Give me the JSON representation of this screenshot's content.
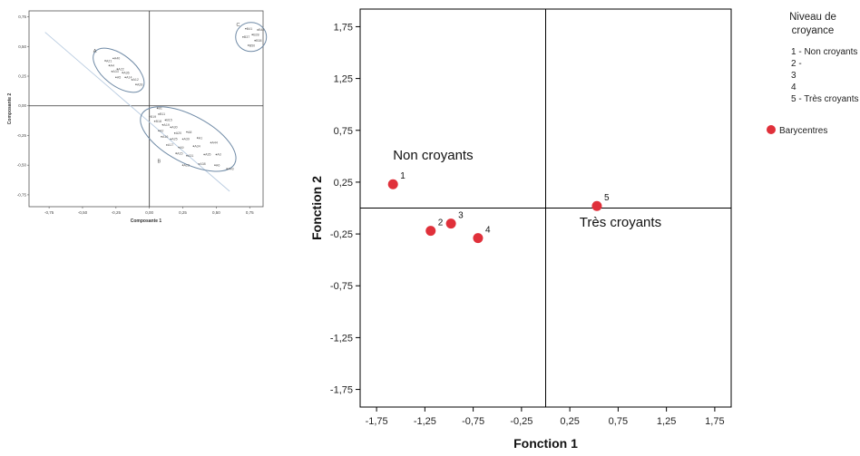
{
  "chart_data": [
    {
      "type": "scatter",
      "title": "",
      "xlabel": "Composante 1",
      "ylabel": "Composante 2",
      "xlim": [
        -0.9,
        0.85
      ],
      "ylim": [
        -0.85,
        0.8
      ],
      "x_ticks": [
        "-0,75",
        "-0,50",
        "-0,25",
        "0,00",
        "0,25",
        "0,50",
        "0,75"
      ],
      "y_ticks": [
        "0,75",
        "0,50",
        "0,25",
        "0,00",
        "-0,25",
        "-0,50",
        "-0,75"
      ],
      "group_labels": [
        {
          "label": "A",
          "x": -0.42,
          "y": 0.45
        },
        {
          "label": "B",
          "x": 0.06,
          "y": -0.48
        },
        {
          "label": "C",
          "x": 0.65,
          "y": 0.67
        }
      ],
      "series": [
        {
          "name": "A",
          "points": [
            {
              "label": "A21",
              "x": -0.33,
              "y": 0.38
            },
            {
              "label": "A40",
              "x": -0.27,
              "y": 0.4
            },
            {
              "label": "A4",
              "x": -0.3,
              "y": 0.34
            },
            {
              "label": "A22",
              "x": -0.24,
              "y": 0.31
            },
            {
              "label": "A33",
              "x": -0.28,
              "y": 0.29
            },
            {
              "label": "A36",
              "x": -0.2,
              "y": 0.28
            },
            {
              "label": "A5",
              "x": -0.25,
              "y": 0.24
            },
            {
              "label": "A14",
              "x": -0.18,
              "y": 0.24
            },
            {
              "label": "A12",
              "x": -0.13,
              "y": 0.22
            },
            {
              "label": "A28",
              "x": -0.1,
              "y": 0.18
            }
          ]
        },
        {
          "name": "B",
          "points": [
            {
              "label": "B1",
              "x": 0.06,
              "y": -0.02
            },
            {
              "label": "B11",
              "x": 0.07,
              "y": -0.07
            },
            {
              "label": "B19",
              "x": 0.0,
              "y": -0.09
            },
            {
              "label": "B15",
              "x": 0.12,
              "y": -0.12
            },
            {
              "label": "B18",
              "x": 0.04,
              "y": -0.13
            },
            {
              "label": "A19",
              "x": 0.1,
              "y": -0.16
            },
            {
              "label": "A30",
              "x": 0.16,
              "y": -0.18
            },
            {
              "label": "A2",
              "x": 0.07,
              "y": -0.21
            },
            {
              "label": "A20",
              "x": 0.19,
              "y": -0.23
            },
            {
              "label": "A8",
              "x": 0.28,
              "y": -0.22
            },
            {
              "label": "A16",
              "x": 0.09,
              "y": -0.26
            },
            {
              "label": "A25",
              "x": 0.16,
              "y": -0.28
            },
            {
              "label": "A39",
              "x": 0.25,
              "y": -0.28
            },
            {
              "label": "A1",
              "x": 0.36,
              "y": -0.27
            },
            {
              "label": "A17",
              "x": 0.13,
              "y": -0.33
            },
            {
              "label": "A9",
              "x": 0.22,
              "y": -0.35
            },
            {
              "label": "A34",
              "x": 0.33,
              "y": -0.34
            },
            {
              "label": "A44",
              "x": 0.46,
              "y": -0.31
            },
            {
              "label": "A15",
              "x": 0.2,
              "y": -0.4
            },
            {
              "label": "A31",
              "x": 0.28,
              "y": -0.42
            },
            {
              "label": "A35",
              "x": 0.41,
              "y": -0.41
            },
            {
              "label": "A3",
              "x": 0.5,
              "y": -0.41
            },
            {
              "label": "A23",
              "x": 0.25,
              "y": -0.5
            },
            {
              "label": "A38",
              "x": 0.37,
              "y": -0.49
            },
            {
              "label": "A6",
              "x": 0.49,
              "y": -0.5
            },
            {
              "label": "A43",
              "x": 0.58,
              "y": -0.53
            }
          ]
        },
        {
          "name": "C",
          "points": [
            {
              "label": "B41",
              "x": 0.72,
              "y": 0.65
            },
            {
              "label": "B42",
              "x": 0.81,
              "y": 0.64
            },
            {
              "label": "B28",
              "x": 0.77,
              "y": 0.6
            },
            {
              "label": "B37",
              "x": 0.7,
              "y": 0.58
            },
            {
              "label": "B38",
              "x": 0.79,
              "y": 0.55
            },
            {
              "label": "B50",
              "x": 0.74,
              "y": 0.51
            }
          ]
        }
      ]
    },
    {
      "type": "scatter",
      "title": "",
      "xlabel": "Fonction 1",
      "ylabel": "Fonction 2",
      "xlim": [
        -1.92,
        1.92
      ],
      "ylim": [
        -1.92,
        1.92
      ],
      "x_ticks": [
        "-1,75",
        "-1,25",
        "-0,75",
        "-0,25",
        "0,25",
        "0,75",
        "1,25",
        "1,75"
      ],
      "y_ticks": [
        "1,75",
        "1,25",
        "0,75",
        "0,25",
        "-0,25",
        "-0,75",
        "-1,25",
        "-1,75"
      ],
      "tick_values": [
        -1.75,
        -1.25,
        -0.75,
        -0.25,
        0.25,
        0.75,
        1.25,
        1.75
      ],
      "reference_lines": {
        "x": 0.0,
        "y": 0.0
      },
      "point_color": "#e0303a",
      "points": [
        {
          "label": "1",
          "x": -1.58,
          "y": 0.23
        },
        {
          "label": "2",
          "x": -1.19,
          "y": -0.22
        },
        {
          "label": "3",
          "x": -0.98,
          "y": -0.15
        },
        {
          "label": "4",
          "x": -0.7,
          "y": -0.29
        },
        {
          "label": "5",
          "x": 0.53,
          "y": 0.02
        }
      ],
      "annotations": [
        {
          "text": "Non croyants",
          "x": -1.58,
          "y": 0.47
        },
        {
          "text": "Très croyants",
          "x": 0.35,
          "y": -0.18
        }
      ],
      "legend": {
        "position": "right",
        "title_lines": [
          "Niveau de",
          "croyance"
        ],
        "items": [
          "1 - Non croyants",
          "2 -",
          "3",
          "4",
          "5 - Très croyants"
        ],
        "marker_label": "Barycentres"
      }
    }
  ]
}
